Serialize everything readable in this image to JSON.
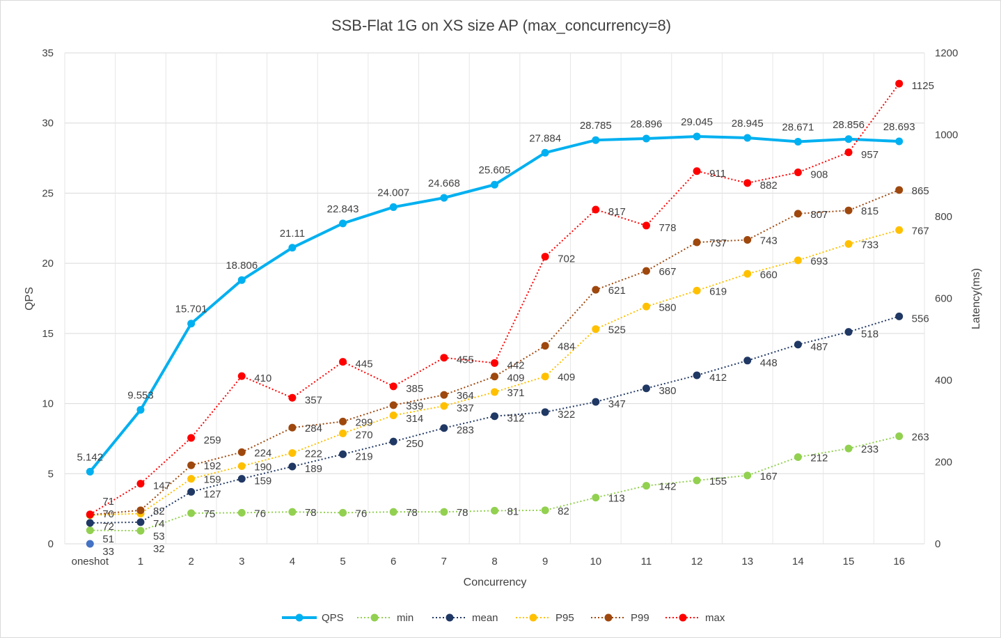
{
  "chart_data": {
    "type": "line",
    "title": "SSB-Flat 1G on XS size AP (max_concurrency=8)",
    "xlabel": "Concurrency",
    "ylabel": "QPS",
    "y2label": "Latency(ms)",
    "ylim": [
      0,
      35
    ],
    "y2lim": [
      0,
      1200
    ],
    "yticks": [
      0,
      5,
      10,
      15,
      20,
      25,
      30,
      35
    ],
    "y2ticks": [
      0,
      200,
      400,
      600,
      800,
      1000,
      1200
    ],
    "grid": true,
    "legend": "bottom",
    "categories": [
      "oneshot",
      "1",
      "2",
      "3",
      "4",
      "5",
      "6",
      "7",
      "8",
      "9",
      "10",
      "11",
      "12",
      "13",
      "14",
      "15",
      "16"
    ],
    "series": [
      {
        "name": "QPS",
        "axis": "left",
        "style": "solid",
        "color": "#00B0F0",
        "values": [
          5.142,
          9.553,
          15.701,
          18.806,
          21.11,
          22.843,
          24.007,
          24.668,
          25.605,
          27.884,
          28.785,
          28.896,
          29.045,
          28.945,
          28.671,
          28.856,
          28.693
        ]
      },
      {
        "name": "min",
        "axis": "right",
        "style": "dotted",
        "color": "#92D050",
        "values": [
          33,
          32,
          75,
          76,
          78,
          76,
          78,
          78,
          81,
          82,
          113,
          142,
          155,
          167,
          212,
          233,
          263
        ]
      },
      {
        "name": "mean",
        "axis": "right",
        "style": "dotted",
        "color": "#203864",
        "values": [
          51,
          53,
          127,
          159,
          189,
          219,
          250,
          283,
          312,
          322,
          347,
          380,
          412,
          448,
          487,
          518,
          556
        ]
      },
      {
        "name": "P95",
        "axis": "right",
        "style": "dotted",
        "color": "#FFC000",
        "values": [
          70,
          74,
          159,
          190,
          222,
          270,
          314,
          337,
          371,
          409,
          525,
          580,
          619,
          660,
          693,
          733,
          767
        ]
      },
      {
        "name": "P99",
        "axis": "right",
        "style": "dotted",
        "color": "#9E480E",
        "values": [
          71,
          82,
          192,
          224,
          284,
          299,
          339,
          364,
          409,
          484,
          621,
          667,
          737,
          743,
          807,
          815,
          865
        ]
      },
      {
        "name": "max",
        "axis": "right",
        "style": "dotted",
        "color": "#FF0000",
        "values": [
          72,
          147,
          259,
          410,
          357,
          445,
          385,
          455,
          442,
          702,
          817,
          778,
          911,
          882,
          908,
          957,
          1125
        ]
      }
    ],
    "extra_point": {
      "category": "oneshot",
      "value": 0,
      "axis": "left",
      "color": "#4472C4"
    }
  }
}
